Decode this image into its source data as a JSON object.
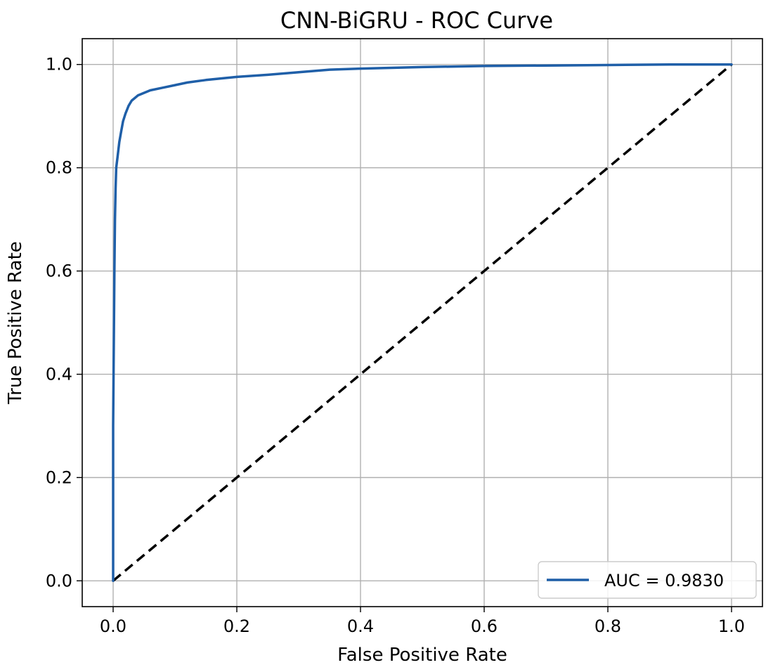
{
  "chart_data": {
    "type": "line",
    "title": "CNN-BiGRU - ROC Curve",
    "xlabel": "False Positive Rate",
    "ylabel": "True Positive Rate",
    "xlim": [
      -0.05,
      1.05
    ],
    "ylim": [
      -0.05,
      1.05
    ],
    "x_ticks": [
      0.0,
      0.2,
      0.4,
      0.6,
      0.8,
      1.0
    ],
    "y_ticks": [
      0.0,
      0.2,
      0.4,
      0.6,
      0.8,
      1.0
    ],
    "x_tick_labels": [
      "0.0",
      "0.2",
      "0.4",
      "0.6",
      "0.8",
      "1.0"
    ],
    "y_tick_labels": [
      "0.0",
      "0.2",
      "0.4",
      "0.6",
      "0.8",
      "1.0"
    ],
    "grid": true,
    "legend_position": "lower-right",
    "series": [
      {
        "name": "AUC = 0.9830",
        "color": "#1f5fa8",
        "x": [
          0.0,
          0.0,
          0.002,
          0.003,
          0.004,
          0.005,
          0.007,
          0.01,
          0.013,
          0.016,
          0.02,
          0.025,
          0.03,
          0.035,
          0.04,
          0.05,
          0.06,
          0.08,
          0.1,
          0.12,
          0.15,
          0.2,
          0.25,
          0.3,
          0.35,
          0.4,
          0.5,
          0.6,
          0.7,
          0.8,
          0.9,
          1.0
        ],
        "y": [
          0.0,
          0.3,
          0.6,
          0.7,
          0.76,
          0.8,
          0.82,
          0.85,
          0.87,
          0.89,
          0.905,
          0.92,
          0.93,
          0.935,
          0.94,
          0.945,
          0.95,
          0.955,
          0.96,
          0.965,
          0.97,
          0.976,
          0.98,
          0.985,
          0.99,
          0.992,
          0.995,
          0.997,
          0.998,
          0.999,
          1.0,
          1.0
        ]
      }
    ],
    "reference_line": {
      "x": [
        0.0,
        1.0
      ],
      "y": [
        0.0,
        1.0
      ],
      "color": "#000000",
      "style": "dashed"
    }
  }
}
